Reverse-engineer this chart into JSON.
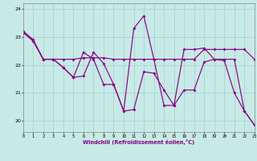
{
  "xlabel": "Windchill (Refroidissement éolien,°C)",
  "bg_color": "#c8eae6",
  "line_color": "#880088",
  "grid_color": "#a0d0cc",
  "ylim": [
    19.6,
    24.2
  ],
  "xlim": [
    0,
    23
  ],
  "yticks": [
    20,
    21,
    22,
    23,
    24
  ],
  "xticks": [
    0,
    1,
    2,
    3,
    4,
    5,
    6,
    7,
    8,
    9,
    10,
    11,
    12,
    13,
    14,
    15,
    16,
    17,
    18,
    19,
    20,
    21,
    22,
    23
  ],
  "series": [
    [
      23.2,
      22.9,
      22.2,
      22.2,
      21.9,
      21.55,
      21.6,
      22.45,
      22.05,
      21.3,
      20.35,
      20.4,
      21.75,
      21.7,
      21.1,
      20.55,
      21.1,
      21.1,
      22.1,
      22.2,
      22.15,
      21.0,
      20.35,
      19.85
    ],
    [
      23.15,
      22.85,
      22.2,
      22.2,
      22.2,
      22.2,
      22.25,
      22.25,
      22.25,
      22.2,
      22.2,
      22.2,
      22.2,
      22.2,
      22.2,
      22.2,
      22.2,
      22.2,
      22.55,
      22.55,
      22.55,
      22.55,
      22.55,
      22.2
    ],
    [
      23.2,
      22.85,
      22.2,
      22.2,
      21.9,
      21.55,
      22.45,
      22.2,
      21.3,
      21.3,
      20.35,
      23.3,
      23.75,
      22.2,
      20.55,
      20.55,
      22.55,
      22.55,
      22.6,
      22.2,
      22.2,
      22.2,
      20.35,
      19.85
    ]
  ]
}
